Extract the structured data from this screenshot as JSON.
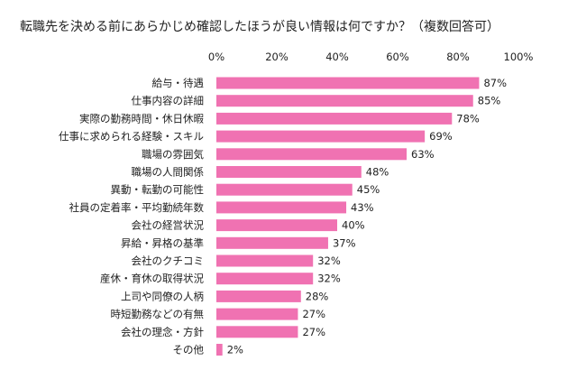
{
  "chart_data": {
    "type": "bar",
    "orientation": "horizontal",
    "title": "転職先を決める前にあらかじめ確認したほうが良い情報は何ですか？（複数回答可）",
    "xlim": [
      0,
      100
    ],
    "x_ticks": [
      "0%",
      "20%",
      "40%",
      "60%",
      "80%",
      "100%"
    ],
    "x_axis_position": "top",
    "grid": false,
    "legend": "none",
    "bar_color": "#f072b2",
    "categories": [
      "給与・待遇",
      "仕事内容の詳細",
      "実際の勤務時間・休日休暇",
      "仕事に求められる経験・スキル",
      "職場の雰囲気",
      "職場の人間関係",
      "異動・転勤の可能性",
      "社員の定着率・平均勤続年数",
      "会社の経営状況",
      "昇給・昇格の基準",
      "会社のクチコミ",
      "産休・育休の取得状況",
      "上司や同僚の人柄",
      "時短勤務などの有無",
      "会社の理念・方針",
      "その他"
    ],
    "values": [
      87,
      85,
      78,
      69,
      63,
      48,
      45,
      43,
      40,
      37,
      32,
      32,
      28,
      27,
      27,
      2
    ],
    "value_labels": [
      "87%",
      "85%",
      "78%",
      "69%",
      "63%",
      "48%",
      "45%",
      "43%",
      "40%",
      "37%",
      "32%",
      "32%",
      "28%",
      "27%",
      "27%",
      "2%"
    ]
  }
}
